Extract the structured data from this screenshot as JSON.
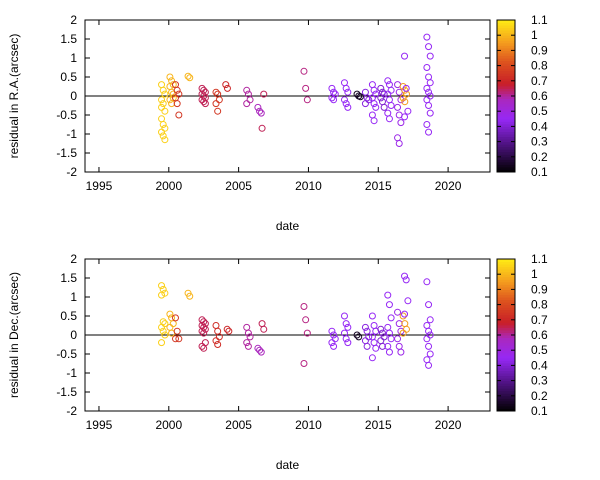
{
  "chart_data": [
    {
      "type": "scatter",
      "xlabel": "date",
      "ylabel": "residual in R.A.(arcsec)",
      "xlim": [
        1994,
        2023
      ],
      "ylim": [
        -2,
        2
      ],
      "xticks": [
        "1995",
        "2000",
        "2005",
        "2010",
        "2015",
        "2020"
      ],
      "yticks": [
        "-2",
        "-1.5",
        "-1",
        "-0.5",
        "0",
        "0.5",
        "1",
        "1.5",
        "2"
      ],
      "zero_line": true,
      "colorbar": {
        "min": 0.1,
        "max": 1.1,
        "ticks": [
          "0.1",
          "0.2",
          "0.3",
          "0.4",
          "0.5",
          "0.6",
          "0.7",
          "0.8",
          "0.9",
          "1",
          "1.1"
        ]
      },
      "groups": [
        {
          "x": 1999.6,
          "c": 1.05,
          "y": [
            0.3,
            0.15,
            0.05,
            -0.1,
            -0.2,
            -0.4,
            -0.6,
            -0.75,
            -0.85,
            -0.95,
            -1.05,
            -1.15,
            -0.3
          ]
        },
        {
          "x": 2000.2,
          "c": 1.0,
          "y": [
            0.5,
            0.4,
            0.3,
            0.25,
            0.1,
            0.05,
            -0.1,
            -0.2,
            -0.05
          ]
        },
        {
          "x": 2000.6,
          "c": 0.75,
          "y": [
            0.3,
            0.15,
            0.05,
            -0.05,
            -0.2,
            -0.5
          ]
        },
        {
          "x": 2001.5,
          "c": 1.0,
          "y": [
            0.52,
            0.48
          ]
        },
        {
          "x": 2002.5,
          "c": 0.65,
          "y": [
            0.2,
            0.15,
            0.1,
            0.05,
            0.0,
            -0.05,
            -0.1,
            -0.15,
            -0.2
          ]
        },
        {
          "x": 2003.5,
          "c": 0.75,
          "y": [
            0.1,
            0.05,
            -0.1,
            -0.2,
            -0.4
          ]
        },
        {
          "x": 2004.2,
          "c": 0.7,
          "y": [
            0.3,
            0.2
          ]
        },
        {
          "x": 2005.7,
          "c": 0.6,
          "y": [
            0.15,
            0.05,
            -0.1,
            -0.2
          ]
        },
        {
          "x": 2006.5,
          "c": 0.58,
          "y": [
            -0.3,
            -0.4,
            -0.45
          ]
        },
        {
          "x": 2006.8,
          "c": 0.65,
          "y": [
            -0.85,
            0.05
          ]
        },
        {
          "x": 2009.8,
          "c": 0.62,
          "y": [
            0.65,
            0.2,
            -0.1
          ]
        },
        {
          "x": 2011.8,
          "c": 0.45,
          "y": [
            0.2,
            0.1,
            0.05,
            -0.05,
            -0.1
          ]
        },
        {
          "x": 2012.7,
          "c": 0.45,
          "y": [
            0.35,
            0.2,
            0.1,
            -0.1,
            -0.2,
            -0.3
          ]
        },
        {
          "x": 2013.6,
          "c": 0.15,
          "y": [
            0.05,
            0.0,
            -0.02
          ]
        },
        {
          "x": 2014.2,
          "c": 0.42,
          "y": [
            0.1,
            -0.05,
            -0.1,
            -0.2
          ]
        },
        {
          "x": 2014.7,
          "c": 0.45,
          "y": [
            0.3,
            0.15,
            0.05,
            -0.05,
            -0.2,
            -0.3,
            -0.5,
            -0.65
          ]
        },
        {
          "x": 2015.3,
          "c": 0.4,
          "y": [
            0.2,
            0.1,
            0.05,
            -0.05,
            -0.15,
            -0.3
          ]
        },
        {
          "x": 2015.8,
          "c": 0.45,
          "y": [
            0.4,
            0.3,
            0.15,
            0.05,
            -0.1,
            -0.25,
            -0.45,
            -0.6
          ]
        },
        {
          "x": 2016.5,
          "c": 0.48,
          "y": [
            0.3,
            0.1,
            -0.1,
            -0.3,
            -0.5,
            -0.7,
            -1.1,
            -1.25
          ]
        },
        {
          "x": 2016.9,
          "c": 0.95,
          "y": [
            0.25,
            0.15,
            0.05,
            -0.05,
            -0.15
          ]
        },
        {
          "x": 2017.0,
          "c": 0.45,
          "y": [
            1.05,
            0.2,
            -0.4,
            -0.55
          ]
        },
        {
          "x": 2018.6,
          "c": 0.45,
          "y": [
            1.55,
            1.3,
            1.05,
            0.75,
            0.5,
            0.35,
            0.2,
            0.1,
            0.0,
            -0.1,
            -0.25,
            -0.45,
            -0.75,
            -0.95
          ]
        }
      ]
    },
    {
      "type": "scatter",
      "xlabel": "date",
      "ylabel": "residual in Dec.(arcsec)",
      "xlim": [
        1994,
        2023
      ],
      "ylim": [
        -2,
        2
      ],
      "xticks": [
        "1995",
        "2000",
        "2005",
        "2010",
        "2015",
        "2020"
      ],
      "yticks": [
        "-2",
        "-1.5",
        "-1",
        "-0.5",
        "0",
        "0.5",
        "1",
        "1.5",
        "2"
      ],
      "zero_line": true,
      "colorbar": {
        "min": 0.1,
        "max": 1.1,
        "ticks": [
          "0.1",
          "0.2",
          "0.3",
          "0.4",
          "0.5",
          "0.6",
          "0.7",
          "0.8",
          "0.9",
          "1",
          "1.1"
        ]
      },
      "groups": [
        {
          "x": 1999.6,
          "c": 1.05,
          "y": [
            1.3,
            1.2,
            1.1,
            1.05,
            0.35,
            0.3,
            0.2,
            0.1,
            0.0,
            -0.2
          ]
        },
        {
          "x": 2000.2,
          "c": 1.0,
          "y": [
            0.55,
            0.45,
            0.3,
            0.2,
            0.05
          ]
        },
        {
          "x": 2000.6,
          "c": 0.75,
          "y": [
            0.45,
            0.1,
            -0.1,
            -0.1
          ]
        },
        {
          "x": 2001.5,
          "c": 1.0,
          "y": [
            1.1,
            1.02
          ]
        },
        {
          "x": 2002.5,
          "c": 0.65,
          "y": [
            0.4,
            0.35,
            0.3,
            0.25,
            0.2,
            0.15,
            0.1,
            0.05,
            -0.2,
            -0.3,
            -0.35
          ]
        },
        {
          "x": 2003.5,
          "c": 0.72,
          "y": [
            0.25,
            0.1,
            -0.05,
            -0.15,
            -0.25
          ]
        },
        {
          "x": 2004.3,
          "c": 0.7,
          "y": [
            0.15,
            0.1
          ]
        },
        {
          "x": 2005.7,
          "c": 0.6,
          "y": [
            0.2,
            0.05,
            -0.05,
            -0.2,
            -0.3
          ]
        },
        {
          "x": 2006.5,
          "c": 0.58,
          "y": [
            -0.35,
            -0.4,
            -0.45
          ]
        },
        {
          "x": 2006.8,
          "c": 0.65,
          "y": [
            0.3,
            0.15
          ]
        },
        {
          "x": 2009.8,
          "c": 0.62,
          "y": [
            0.75,
            0.4,
            0.05,
            -0.75
          ]
        },
        {
          "x": 2011.8,
          "c": 0.45,
          "y": [
            0.1,
            0.0,
            -0.1,
            -0.2,
            -0.3
          ]
        },
        {
          "x": 2012.7,
          "c": 0.45,
          "y": [
            0.5,
            0.3,
            0.2,
            0.05,
            -0.1,
            -0.2
          ]
        },
        {
          "x": 2013.6,
          "c": 0.15,
          "y": [
            0.0,
            -0.05
          ]
        },
        {
          "x": 2014.2,
          "c": 0.42,
          "y": [
            0.2,
            0.1,
            -0.05,
            -0.15,
            -0.3
          ]
        },
        {
          "x": 2014.7,
          "c": 0.45,
          "y": [
            0.5,
            0.25,
            0.1,
            -0.05,
            -0.2,
            -0.35,
            -0.6
          ]
        },
        {
          "x": 2015.3,
          "c": 0.4,
          "y": [
            0.15,
            0.05,
            -0.05,
            -0.15,
            -0.3
          ]
        },
        {
          "x": 2015.8,
          "c": 0.45,
          "y": [
            1.05,
            0.8,
            0.45,
            0.2,
            0.05,
            -0.1,
            -0.3,
            -0.45
          ]
        },
        {
          "x": 2016.5,
          "c": 0.48,
          "y": [
            0.6,
            0.3,
            0.1,
            -0.1,
            -0.3,
            -0.45
          ]
        },
        {
          "x": 2016.9,
          "c": 0.95,
          "y": [
            0.5,
            0.3,
            0.15,
            0.05
          ]
        },
        {
          "x": 2017.0,
          "c": 0.45,
          "y": [
            1.55,
            1.45,
            0.9,
            0.55
          ]
        },
        {
          "x": 2018.6,
          "c": 0.45,
          "y": [
            1.4,
            0.8,
            0.4,
            0.25,
            0.1,
            0.0,
            -0.1,
            -0.3,
            -0.5,
            -0.65,
            -0.8
          ]
        }
      ]
    }
  ]
}
